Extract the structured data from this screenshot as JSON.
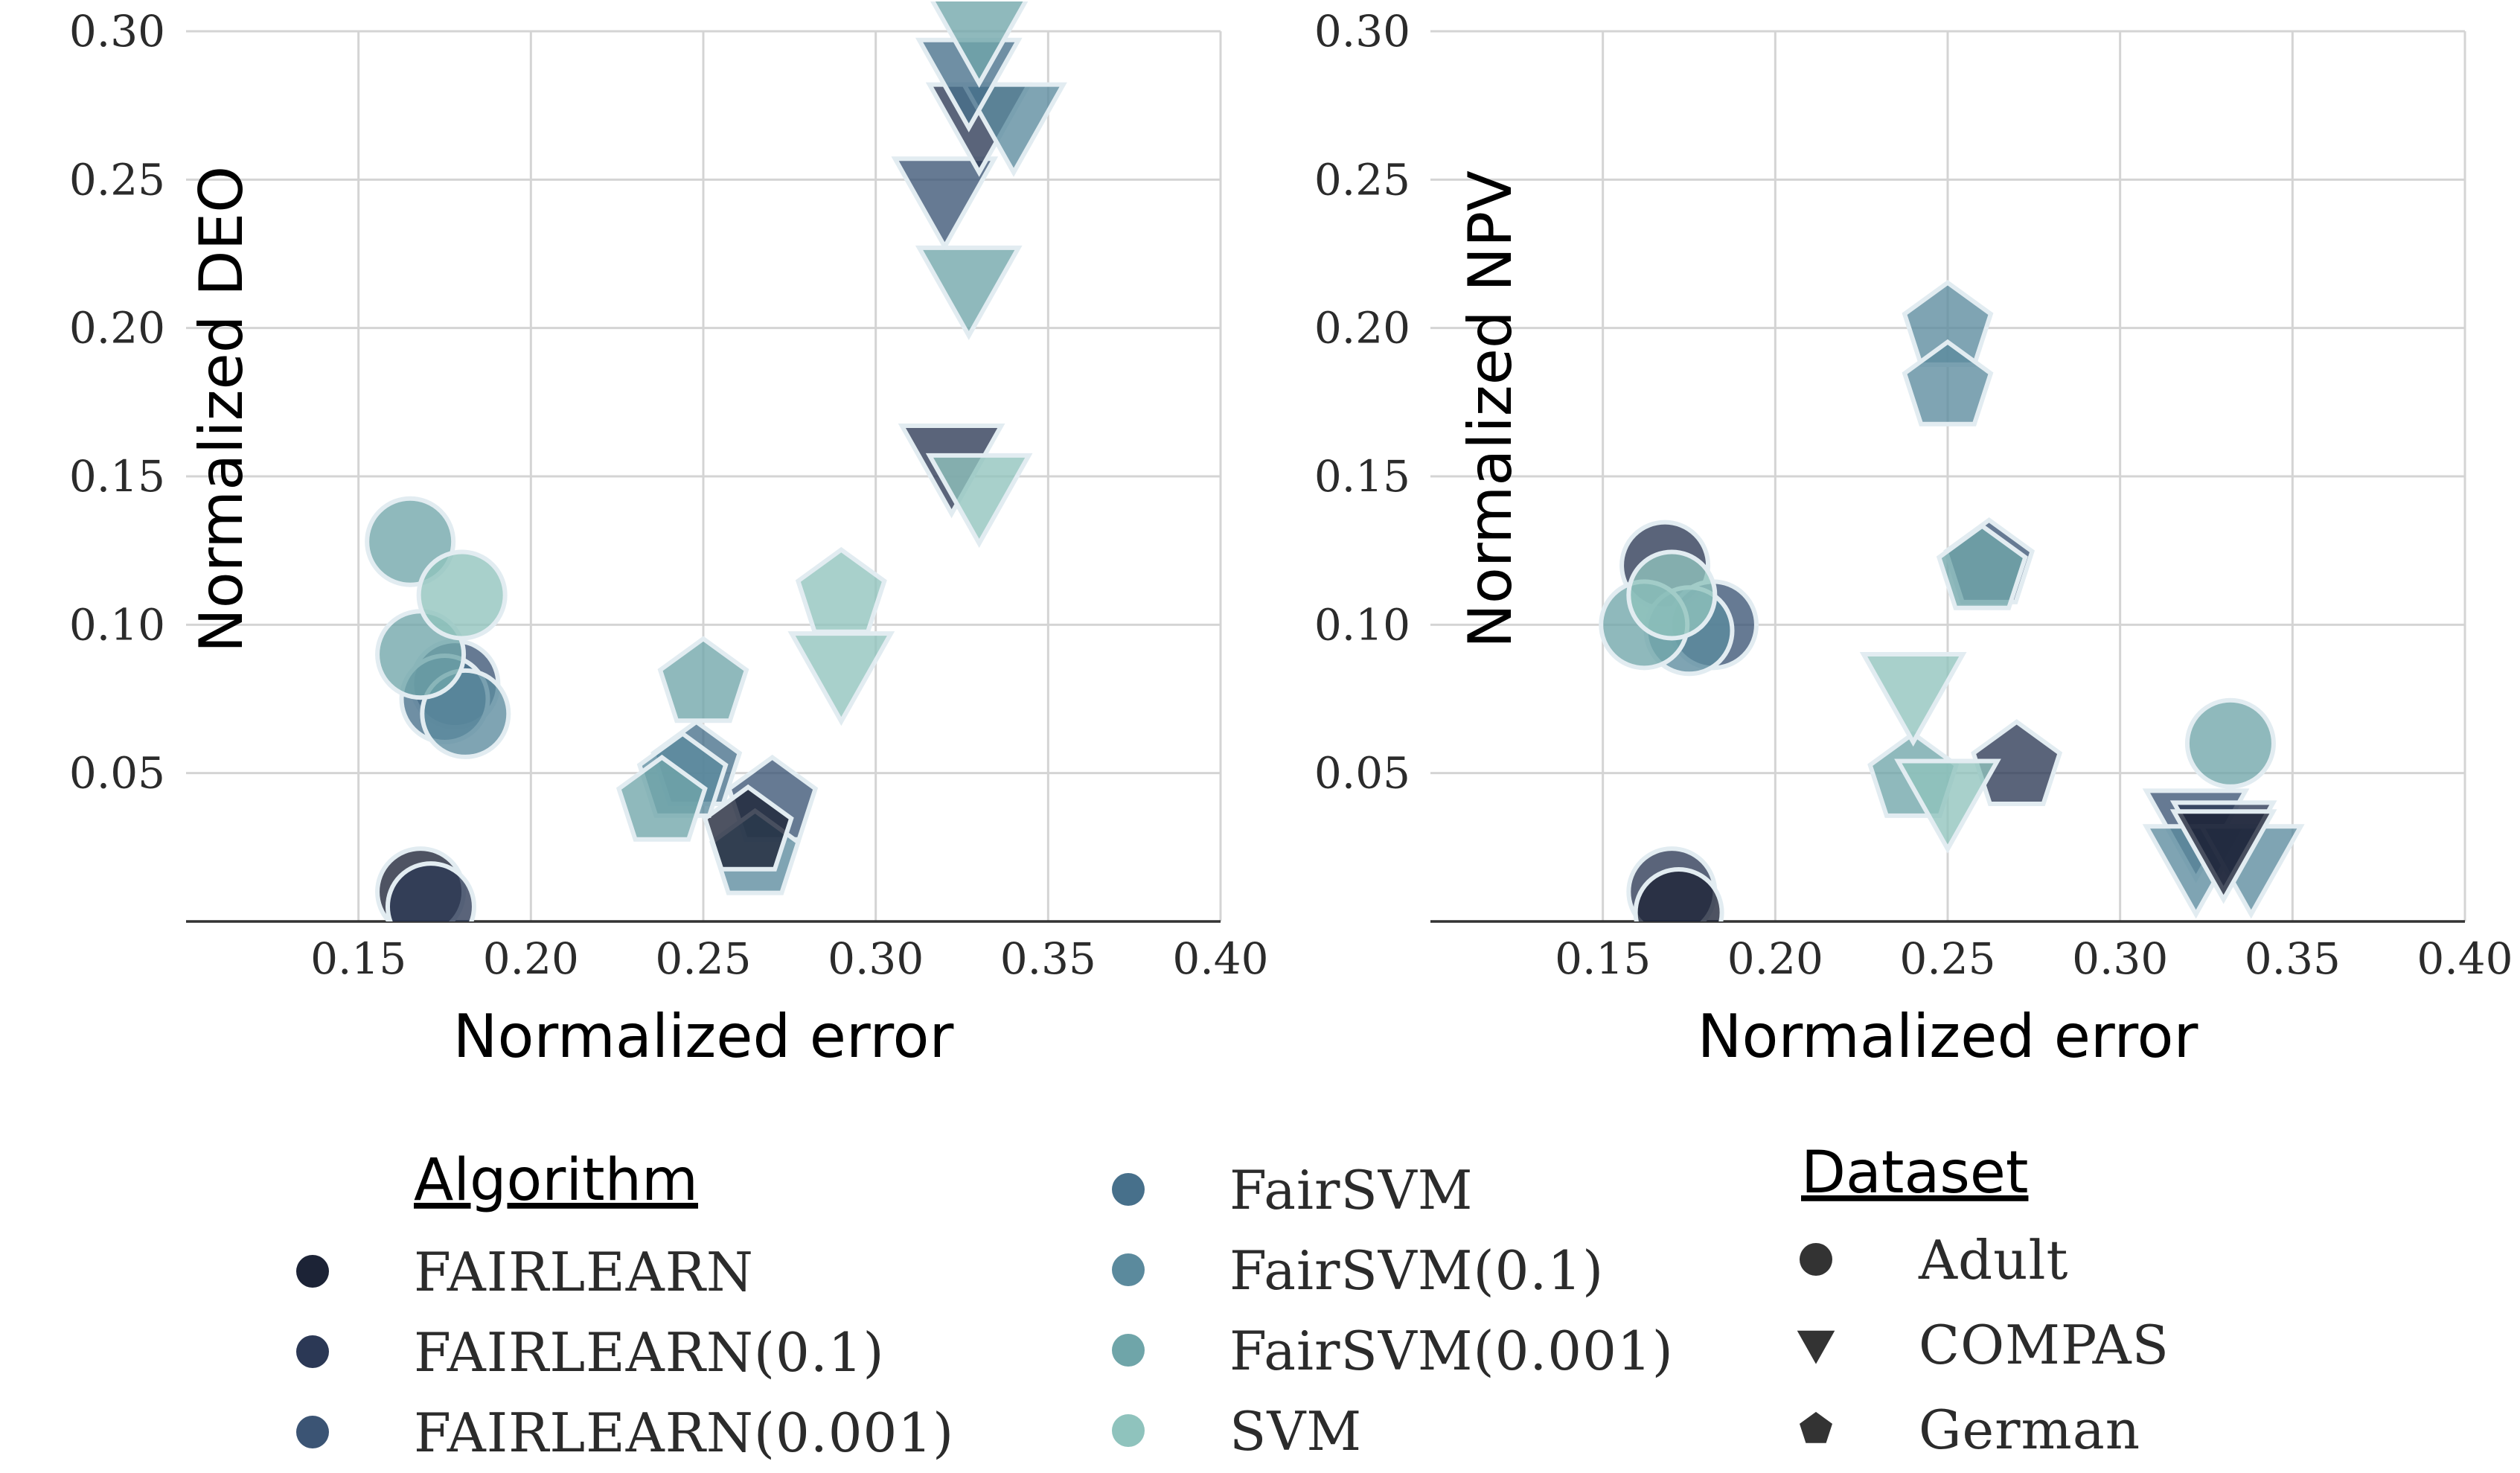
{
  "chart_data": [
    {
      "type": "scatter",
      "ylabel": "Normalized DEO",
      "xlabel": "Normalized error",
      "xlim": [
        0.1,
        0.4
      ],
      "ylim": [
        0.0,
        0.3
      ],
      "x_ticks": [
        "0.15",
        "0.20",
        "0.25",
        "0.30",
        "0.35",
        "0.40"
      ],
      "x_tick_values": [
        0.15,
        0.2,
        0.25,
        0.3,
        0.35,
        0.4
      ],
      "y_ticks": [
        "0.05",
        "0.10",
        "0.15",
        "0.20",
        "0.25",
        "0.30"
      ],
      "y_tick_values": [
        0.05,
        0.1,
        0.15,
        0.2,
        0.25,
        0.3
      ],
      "grid": true,
      "points": [
        {
          "algorithm": "FAIRLEARN",
          "dataset": "Adult",
          "x": 0.168,
          "y": 0.01
        },
        {
          "algorithm": "FAIRLEARN(0.1)",
          "dataset": "Adult",
          "x": 0.171,
          "y": 0.005
        },
        {
          "algorithm": "FAIRLEARN(0.001)",
          "dataset": "Adult",
          "x": 0.178,
          "y": 0.08
        },
        {
          "algorithm": "FairSVM",
          "dataset": "Adult",
          "x": 0.175,
          "y": 0.075
        },
        {
          "algorithm": "FairSVM(0.1)",
          "dataset": "Adult",
          "x": 0.181,
          "y": 0.07
        },
        {
          "algorithm": "FairSVM(0.001)",
          "dataset": "Adult",
          "x": 0.165,
          "y": 0.128
        },
        {
          "algorithm": "FairSVM(0.001)",
          "dataset": "Adult",
          "x": 0.168,
          "y": 0.09
        },
        {
          "algorithm": "SVM",
          "dataset": "Adult",
          "x": 0.18,
          "y": 0.11
        },
        {
          "algorithm": "FAIRLEARN(0.001)",
          "dataset": "German",
          "x": 0.27,
          "y": 0.04
        },
        {
          "algorithm": "FairSVM(0.1)",
          "dataset": "German",
          "x": 0.265,
          "y": 0.022
        },
        {
          "algorithm": "FAIRLEARN",
          "dataset": "German",
          "x": 0.263,
          "y": 0.03
        },
        {
          "algorithm": "FairSVM",
          "dataset": "German",
          "x": 0.248,
          "y": 0.052
        },
        {
          "algorithm": "FairSVM(0.1)",
          "dataset": "German",
          "x": 0.244,
          "y": 0.048
        },
        {
          "algorithm": "FairSVM(0.001)",
          "dataset": "German",
          "x": 0.238,
          "y": 0.04
        },
        {
          "algorithm": "FairSVM(0.001)",
          "dataset": "German",
          "x": 0.25,
          "y": 0.08
        },
        {
          "algorithm": "SVM",
          "dataset": "German",
          "x": 0.29,
          "y": 0.11
        },
        {
          "algorithm": "SVM",
          "dataset": "COMPAS",
          "x": 0.29,
          "y": 0.085
        },
        {
          "algorithm": "FAIRLEARN(0.1)",
          "dataset": "COMPAS",
          "x": 0.322,
          "y": 0.155
        },
        {
          "algorithm": "SVM",
          "dataset": "COMPAS",
          "x": 0.33,
          "y": 0.145
        },
        {
          "algorithm": "FAIRLEARN(0.001)",
          "dataset": "COMPAS",
          "x": 0.32,
          "y": 0.245
        },
        {
          "algorithm": "FairSVM(0.001)",
          "dataset": "COMPAS",
          "x": 0.327,
          "y": 0.215
        },
        {
          "algorithm": "FAIRLEARN(0.1)",
          "dataset": "COMPAS",
          "x": 0.33,
          "y": 0.27
        },
        {
          "algorithm": "FairSVM(0.1)",
          "dataset": "COMPAS",
          "x": 0.34,
          "y": 0.27
        },
        {
          "algorithm": "FairSVM",
          "dataset": "COMPAS",
          "x": 0.327,
          "y": 0.285
        },
        {
          "algorithm": "FairSVM(0.001)",
          "dataset": "COMPAS",
          "x": 0.33,
          "y": 0.3
        }
      ]
    },
    {
      "type": "scatter",
      "ylabel": "Normalized NPV",
      "xlabel": "Normalized error",
      "xlim": [
        0.1,
        0.4
      ],
      "ylim": [
        0.0,
        0.3
      ],
      "x_ticks": [
        "0.15",
        "0.20",
        "0.25",
        "0.30",
        "0.35",
        "0.40"
      ],
      "x_tick_values": [
        0.15,
        0.2,
        0.25,
        0.3,
        0.35,
        0.4
      ],
      "y_ticks": [
        "0.05",
        "0.10",
        "0.15",
        "0.20",
        "0.25",
        "0.30"
      ],
      "y_tick_values": [
        0.05,
        0.1,
        0.15,
        0.2,
        0.25,
        0.3
      ],
      "grid": true,
      "points": [
        {
          "algorithm": "FAIRLEARN(0.1)",
          "dataset": "Adult",
          "x": 0.168,
          "y": 0.12
        },
        {
          "algorithm": "FAIRLEARN(0.001)",
          "dataset": "Adult",
          "x": 0.182,
          "y": 0.1
        },
        {
          "algorithm": "FairSVM(0.1)",
          "dataset": "Adult",
          "x": 0.175,
          "y": 0.098
        },
        {
          "algorithm": "FairSVM(0.001)",
          "dataset": "Adult",
          "x": 0.162,
          "y": 0.1
        },
        {
          "algorithm": "SVM",
          "dataset": "Adult",
          "x": 0.17,
          "y": 0.11
        },
        {
          "algorithm": "FAIRLEARN(0.1)",
          "dataset": "Adult",
          "x": 0.17,
          "y": 0.01
        },
        {
          "algorithm": "FAIRLEARN",
          "dataset": "Adult",
          "x": 0.172,
          "y": 0.003
        },
        {
          "algorithm": "FairSVM(0.1)",
          "dataset": "German",
          "x": 0.25,
          "y": 0.2
        },
        {
          "algorithm": "FairSVM(0.1)",
          "dataset": "German",
          "x": 0.25,
          "y": 0.18
        },
        {
          "algorithm": "FAIRLEARN(0.001)",
          "dataset": "German",
          "x": 0.262,
          "y": 0.12
        },
        {
          "algorithm": "FairSVM(0.001)",
          "dataset": "German",
          "x": 0.26,
          "y": 0.118
        },
        {
          "algorithm": "FAIRLEARN(0.1)",
          "dataset": "German",
          "x": 0.27,
          "y": 0.052
        },
        {
          "algorithm": "FairSVM(0.001)",
          "dataset": "German",
          "x": 0.24,
          "y": 0.048
        },
        {
          "algorithm": "SVM",
          "dataset": "COMPAS",
          "x": 0.24,
          "y": 0.078
        },
        {
          "algorithm": "SVM",
          "dataset": "COMPAS",
          "x": 0.25,
          "y": 0.042
        },
        {
          "algorithm": "FAIRLEARN(0.001)",
          "dataset": "COMPAS",
          "x": 0.322,
          "y": 0.032
        },
        {
          "algorithm": "FairSVM(0.1)",
          "dataset": "COMPAS",
          "x": 0.322,
          "y": 0.02
        },
        {
          "algorithm": "FairSVM(0.1)",
          "dataset": "COMPAS",
          "x": 0.338,
          "y": 0.02
        },
        {
          "algorithm": "FAIRLEARN(0.1)",
          "dataset": "COMPAS",
          "x": 0.33,
          "y": 0.028
        },
        {
          "algorithm": "FairSVM(0.001)",
          "dataset": "Adult",
          "x": 0.332,
          "y": 0.06
        },
        {
          "algorithm": "FAIRLEARN",
          "dataset": "COMPAS",
          "x": 0.33,
          "y": 0.025
        }
      ]
    }
  ],
  "legend": {
    "algorithm_title": "Algorithm",
    "dataset_title": "Dataset",
    "algorithms": [
      {
        "name": "FAIRLEARN",
        "color": "#1c2336"
      },
      {
        "name": "FAIRLEARN(0.1)",
        "color": "#2b3855"
      },
      {
        "name": "FAIRLEARN(0.001)",
        "color": "#3b5474"
      },
      {
        "name": "FairSVM",
        "color": "#47708b"
      },
      {
        "name": "FairSVM(0.1)",
        "color": "#5b8a9d"
      },
      {
        "name": "FairSVM(0.001)",
        "color": "#6fa5a9"
      },
      {
        "name": "SVM",
        "color": "#8fc3bd"
      }
    ],
    "datasets": [
      {
        "name": "Adult",
        "marker": "circle"
      },
      {
        "name": "COMPAS",
        "marker": "triangle-down"
      },
      {
        "name": "German",
        "marker": "pentagon"
      }
    ],
    "dataset_marker_color": "#333333"
  },
  "colors": {
    "point_alpha": 0.78,
    "marker_edge": "#e2ecf1"
  }
}
